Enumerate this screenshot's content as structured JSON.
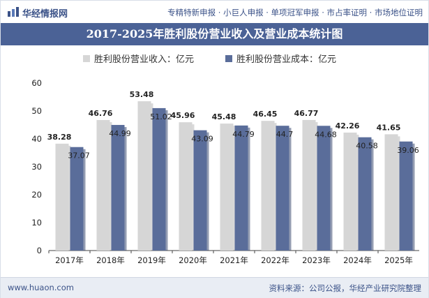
{
  "header": {
    "logo_text": "华经情报网",
    "services": "专精特新申报 · 小巨人申报 · 单项冠军申报 · 市占率证明 · 市场地位证明"
  },
  "chart_data": {
    "type": "bar",
    "title": "2017-2025年胜利股份营业收入及营业成本统计图",
    "categories": [
      "2017年",
      "2018年",
      "2019年",
      "2020年",
      "2021年",
      "2022年",
      "2023年",
      "2024年",
      "2025年"
    ],
    "series": [
      {
        "name": "胜利股份营业收入：亿元",
        "values": [
          38.28,
          46.76,
          53.48,
          45.96,
          45.48,
          46.45,
          46.77,
          42.26,
          41.65
        ]
      },
      {
        "name": "胜利股份营业成本：亿元",
        "values": [
          37.07,
          44.99,
          51.02,
          43.09,
          44.79,
          44.7,
          44.68,
          40.58,
          39.06
        ]
      }
    ],
    "ylim": [
      0,
      60
    ],
    "yticks": [
      0,
      10,
      20,
      30,
      40,
      50,
      60
    ],
    "legend": "top-center",
    "grid": false,
    "colors": [
      "#d6d6d6",
      "#5a6d9a"
    ]
  },
  "footer": {
    "site": "www.huaon.com",
    "source": "资料来源：公司公报，华经产业研究院整理"
  }
}
